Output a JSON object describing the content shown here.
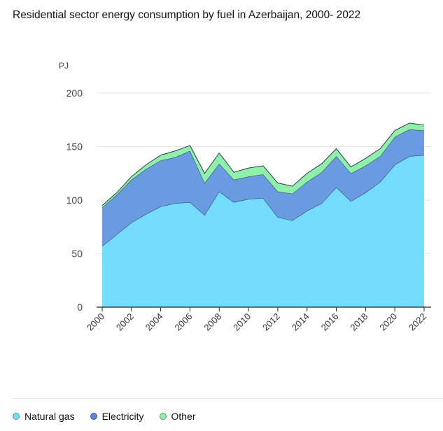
{
  "title": "Residential sector energy consumption by fuel in Azerbaijan, 2000- 2022",
  "chart_data": {
    "type": "area",
    "stacked": true,
    "unit_label": "PJ",
    "x": [
      2000,
      2001,
      2002,
      2003,
      2004,
      2005,
      2006,
      2007,
      2008,
      2009,
      2010,
      2011,
      2012,
      2013,
      2014,
      2015,
      2016,
      2017,
      2018,
      2019,
      2020,
      2021,
      2022
    ],
    "x_tick_labels": [
      "2000",
      "2002",
      "2004",
      "2006",
      "2008",
      "2010",
      "2012",
      "2014",
      "2016",
      "2018",
      "2020",
      "2022"
    ],
    "y_ticks": [
      "0",
      "50",
      "100",
      "150",
      "200"
    ],
    "ylim": [
      0,
      200
    ],
    "grid": true,
    "legend_position": "bottom-left",
    "series": [
      {
        "name": "Natural gas",
        "color": "#74dcff",
        "values": [
          57,
          68,
          79,
          87,
          94,
          97,
          98,
          86,
          108,
          98,
          101,
          102,
          84,
          81,
          90,
          97,
          112,
          99,
          107,
          117,
          133,
          141,
          142
        ]
      },
      {
        "name": "Electricity",
        "color": "#6a9be0",
        "values": [
          36,
          37,
          40,
          42,
          43,
          43,
          48,
          30,
          26,
          21,
          21,
          22,
          24,
          25,
          27,
          29,
          29,
          26,
          25,
          24,
          26,
          25,
          23
        ]
      },
      {
        "name": "Other",
        "color": "#8ef0a9",
        "values": [
          2,
          2,
          3,
          4,
          5,
          6,
          5,
          9,
          10,
          7,
          8,
          8,
          8,
          7,
          8,
          8,
          7,
          6,
          7,
          7,
          6,
          6,
          5
        ]
      }
    ]
  }
}
